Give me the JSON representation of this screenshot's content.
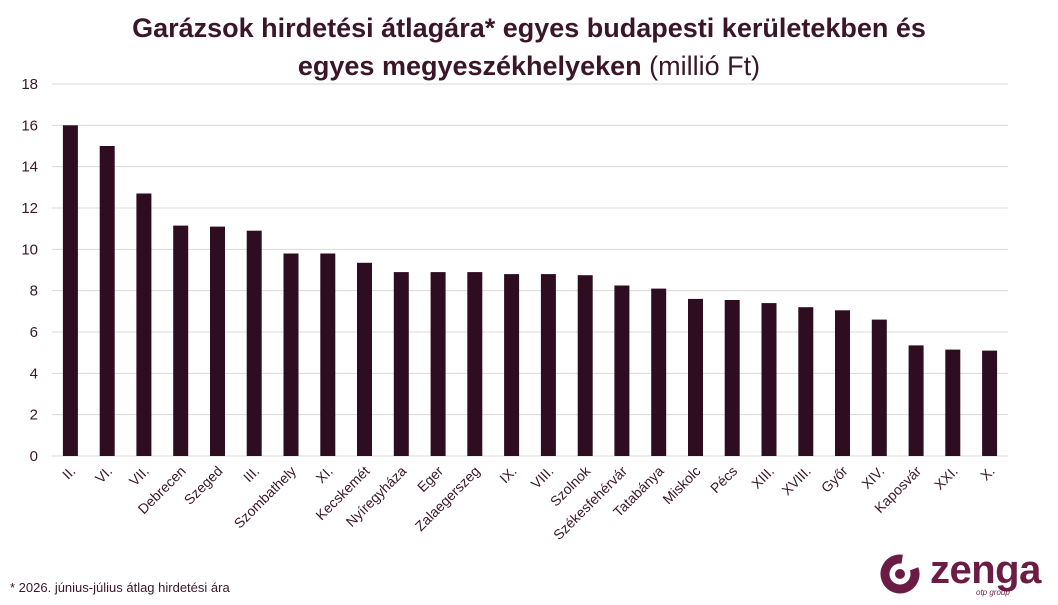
{
  "chart_data": {
    "type": "bar",
    "title_line1": "Garázsok hirdetési átlagára* egyes budapesti kerületekben és",
    "title_line2_bold": "egyes megyeszékhelyeken",
    "title_line2_unit": " (millió Ft)",
    "categories": [
      "II.",
      "VI.",
      "VII.",
      "Debrecen",
      "Szeged",
      "III.",
      "Szombathely",
      "XI.",
      "Kecskemét",
      "Nyíregyháza",
      "Eger",
      "Zalaegerszeg",
      "IX.",
      "VIII.",
      "Szolnok",
      "Székesfehérvár",
      "Tatabánya",
      "Miskolc",
      "Pécs",
      "XIII.",
      "XVIII.",
      "Győr",
      "XIV.",
      "Kaposvár",
      "XXI.",
      "X."
    ],
    "values": [
      16.0,
      15.0,
      12.7,
      11.15,
      11.1,
      10.9,
      9.8,
      9.8,
      9.35,
      8.9,
      8.9,
      8.9,
      8.8,
      8.8,
      8.75,
      8.25,
      8.1,
      7.6,
      7.55,
      7.4,
      7.2,
      7.05,
      6.6,
      5.35,
      5.15,
      5.1
    ],
    "ylim": [
      0,
      18
    ],
    "yticks": [
      "0",
      "2",
      "4",
      "6",
      "8",
      "10",
      "12",
      "14",
      "16",
      "18"
    ],
    "grid": true,
    "bar_color": "#2e0d21"
  },
  "footnote": "* 2026. június-július átlag hirdetési ára",
  "logo": {
    "word": "zenga",
    "sub": "otp group",
    "color": "#6b1c45"
  }
}
